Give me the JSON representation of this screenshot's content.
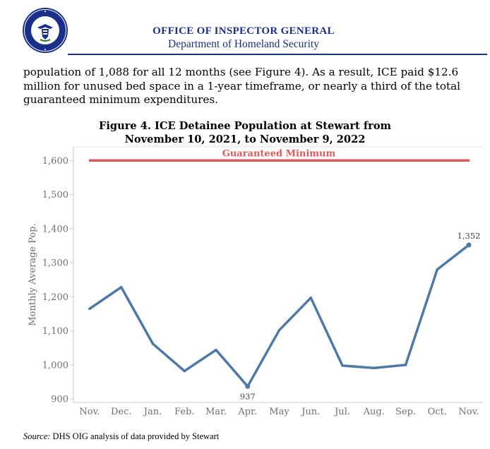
{
  "header": {
    "org_title": "OFFICE OF INSPECTOR GENERAL",
    "org_subtitle": "Department of Homeland Security",
    "seal_text": "U.S. DEPARTMENT OF HOMELAND SECURITY",
    "accent_color": "#1a2f8a"
  },
  "body": {
    "paragraph": "population of 1,088 for all 12 months (see Figure 4).  As a result, ICE paid $12.6 million for unused bed space in a 1-year timeframe, or nearly a third of the total guaranteed minimum expenditures."
  },
  "figure": {
    "title_line1": "Figure 4. ICE Detainee Population at Stewart from",
    "title_line2": "November 10, 2021, to November 9, 2022"
  },
  "source": {
    "label": "Source:",
    "text": " DHS OIG analysis of data provided by Stewart"
  },
  "chart_data": {
    "type": "line",
    "categories": [
      "Nov.",
      "Dec.",
      "Jan.",
      "Feb.",
      "Mar.",
      "Apr.",
      "May",
      "Jun.",
      "Jul.",
      "Aug.",
      "Sep.",
      "Oct.",
      "Nov."
    ],
    "series": [
      {
        "values": [
          1165,
          1228,
          1062,
          982,
          1044,
          937,
          1102,
          1197,
          998,
          991,
          1000,
          1280,
          1352
        ],
        "color": "#4e79a7"
      }
    ],
    "reference_line": {
      "label": "Guaranteed Minimum",
      "value": 1600,
      "color": "#e15759"
    },
    "data_labels": [
      {
        "category_index": 5,
        "text": "937"
      },
      {
        "category_index": 12,
        "text": "1,352"
      }
    ],
    "ylabel": "Monthly Average Pop.",
    "xlabel": "",
    "ylim": [
      890,
      1640
    ],
    "yticks": [
      900,
      1000,
      1100,
      1200,
      1300,
      1400,
      1500,
      1600
    ],
    "ytick_labels": [
      "900",
      "1,000",
      "1,100",
      "1,200",
      "1,300",
      "1,400",
      "1,500",
      "1,600"
    ],
    "grid": false
  }
}
